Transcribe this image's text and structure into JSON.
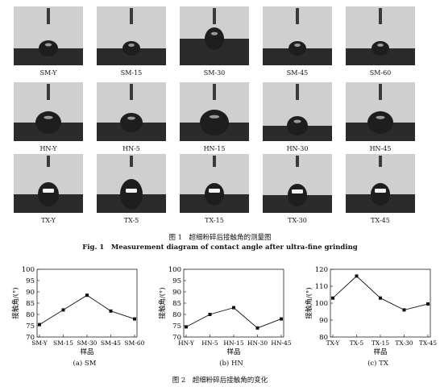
{
  "figure1": {
    "rows": [
      [
        "SM-Y",
        "SM-15",
        "SM-30",
        "SM-45",
        "SM-60"
      ],
      [
        "HN-Y",
        "HN-5",
        "HN-15",
        "HN-30",
        "HN-45"
      ],
      [
        "TX-Y",
        "TX-5",
        "TX-15",
        "TX-30",
        "TX-45"
      ]
    ],
    "caption_cn": "图 1　超细粉碎后接触角的测量图",
    "caption_en": "Fig. 1　Measurement diagram of contact angle after ultra-fine grinding"
  },
  "figure2": {
    "caption_cn": "图 2　超细粉碎后接触角的变化"
  },
  "chart_data": [
    {
      "type": "line",
      "categories": [
        "SM-Y",
        "SM-15",
        "SM-30",
        "SM-45",
        "SM-60"
      ],
      "values": [
        75.5,
        82,
        88.5,
        81.5,
        78
      ],
      "ylim": [
        70,
        100
      ],
      "yticks": [
        70,
        75,
        80,
        85,
        90,
        95,
        100
      ],
      "ylabel": "接触角/(°)",
      "xlabel": "样品",
      "caption": "(a) SM"
    },
    {
      "type": "line",
      "categories": [
        "HN-Y",
        "HN-5",
        "HN-15",
        "HN-30",
        "HN-45"
      ],
      "values": [
        74.5,
        80,
        83,
        74,
        78
      ],
      "ylim": [
        70,
        100
      ],
      "yticks": [
        70,
        75,
        80,
        85,
        90,
        95,
        100
      ],
      "ylabel": "接触角/(°)",
      "xlabel": "样品",
      "caption": "(b) HN"
    },
    {
      "type": "line",
      "categories": [
        "TX-Y",
        "TX-5",
        "TX-15",
        "TX-30",
        "TX-45"
      ],
      "values": [
        103,
        116,
        103,
        96,
        99.5
      ],
      "ylim": [
        80,
        120
      ],
      "yticks": [
        80,
        90,
        100,
        110,
        120
      ],
      "ylabel": "接触角/(°)",
      "xlabel": "样品",
      "caption": "(c) TX"
    }
  ]
}
